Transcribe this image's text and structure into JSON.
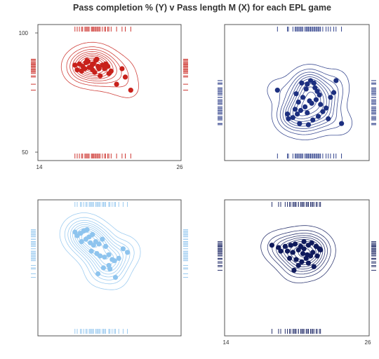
{
  "title": "Pass completion % (Y) v Pass length M (X) for each EPL game",
  "chart_data": [
    {
      "type": "scatter",
      "color": "#c8211b",
      "xlim": [
        14,
        26
      ],
      "ylim": [
        50,
        100
      ],
      "x_ticks": [
        "14",
        "26"
      ],
      "y_ticks": [
        "100",
        "50"
      ],
      "x": [
        16.3,
        16.7,
        17.0,
        17.3,
        17.5,
        17.8,
        18.0,
        18.2,
        18.4,
        16.9,
        17.2,
        17.6,
        17.9,
        18.1,
        18.5,
        18.8,
        19.1,
        19.3,
        16.5,
        17.4,
        18.3,
        19.0,
        19.6,
        18.6,
        19.4,
        20.6,
        20.9,
        21.4,
        20.1,
        17.9
      ],
      "y": [
        86.5,
        87.0,
        86.0,
        87.5,
        88.0,
        86.0,
        87.0,
        88.5,
        86.0,
        84.0,
        85.0,
        85.5,
        84.5,
        83.5,
        85.0,
        86.5,
        87.0,
        86.0,
        84.5,
        88.5,
        89.0,
        85.0,
        84.0,
        82.0,
        83.0,
        85.0,
        81.5,
        76.0,
        78.5,
        87.0
      ]
    },
    {
      "type": "scatter",
      "color": "#1c2f80",
      "xlim": [
        14,
        26
      ],
      "ylim": [
        50,
        100
      ],
      "x_ticks": [],
      "y_ticks": [],
      "x": [
        17.7,
        18.6,
        19.1,
        19.3,
        19.6,
        20.0,
        20.3,
        20.4,
        20.7,
        21.0,
        21.1,
        21.3,
        21.5,
        21.2,
        20.8,
        20.2,
        19.8,
        19.5,
        19.7,
        20.5,
        20.9,
        21.4,
        21.8,
        22.1,
        22.5,
        22.8,
        23.5,
        23.0,
        19.9,
        20.6,
        21.6,
        22.3,
        20.4,
        19.4,
        18.7
      ],
      "y": [
        76.0,
        66.0,
        64.5,
        68.0,
        71.0,
        73.0,
        76.5,
        78.5,
        80.0,
        79.0,
        77.0,
        75.5,
        74.0,
        72.0,
        70.5,
        69.0,
        67.5,
        66.0,
        62.0,
        61.5,
        63.5,
        65.0,
        67.0,
        68.5,
        73.0,
        75.0,
        62.0,
        80.0,
        79.0,
        71.5,
        70.0,
        64.0,
        66.5,
        74.5,
        64.0
      ]
    },
    {
      "type": "scatter",
      "color": "#8ec4ee",
      "xlim": [
        14,
        26
      ],
      "ylim": [
        50,
        100
      ],
      "x_ticks": [],
      "y_ticks": [],
      "x": [
        16.3,
        16.5,
        16.8,
        17.1,
        17.4,
        17.6,
        17.9,
        16.9,
        17.3,
        17.7,
        18.0,
        18.2,
        18.5,
        18.8,
        19.1,
        17.8,
        18.3,
        18.6,
        19.0,
        19.4,
        19.7,
        19.9,
        20.3,
        20.7,
        21.1,
        19.4,
        18.9,
        18.4,
        19.5,
        20.0
      ],
      "y": [
        90.0,
        88.5,
        89.5,
        90.5,
        91.0,
        88.0,
        89.0,
        86.0,
        87.0,
        85.5,
        84.5,
        86.0,
        85.0,
        87.0,
        84.0,
        82.0,
        81.0,
        80.0,
        79.5,
        80.5,
        78.5,
        78.0,
        79.0,
        83.0,
        81.5,
        76.0,
        75.0,
        72.5,
        74.5,
        71.0
      ]
    },
    {
      "type": "scatter",
      "color": "#0f1a5c",
      "xlim": [
        14,
        26
      ],
      "ylim": [
        50,
        100
      ],
      "x_ticks": [
        "14",
        "26"
      ],
      "y_ticks": [],
      "x": [
        17.2,
        17.8,
        18.4,
        18.9,
        19.3,
        19.8,
        20.1,
        20.5,
        20.8,
        21.2,
        21.5,
        18.6,
        19.1,
        19.6,
        20.0,
        20.4,
        20.9,
        21.3,
        18.8,
        19.4,
        19.9,
        20.3,
        20.7,
        19.6,
        20.5,
        21.0,
        19.2,
        18.0,
        20.1,
        21.6
      ],
      "y": [
        84.5,
        83.5,
        84.0,
        84.5,
        85.0,
        84.0,
        83.0,
        84.5,
        85.5,
        84.0,
        83.0,
        82.0,
        81.5,
        82.5,
        81.0,
        80.5,
        81.5,
        80.0,
        79.0,
        78.5,
        77.5,
        79.0,
        80.0,
        76.0,
        77.0,
        75.5,
        74.0,
        82.0,
        86.0,
        82.5
      ]
    }
  ]
}
